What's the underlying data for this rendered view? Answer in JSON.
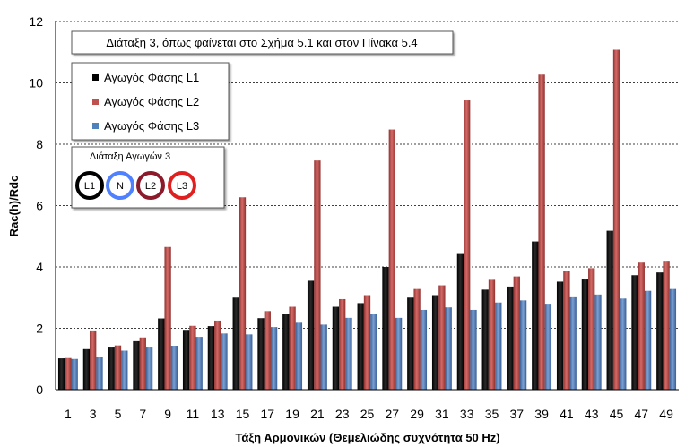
{
  "chart_data": {
    "type": "bar",
    "title": "",
    "annotation": "Διάταξη 3, όπως φαίνεται στο Σχήμα 5.1 και στον Πίνακα 5.4",
    "xlabel": "Τάξη Αρμονικών (Θεμελιώδης συχνότητα 50 Hz)",
    "ylabel": "Rac(h)/Rdc",
    "ylim": [
      0,
      12
    ],
    "yticks": [
      "0",
      "2",
      "4",
      "6",
      "8",
      "10",
      "12"
    ],
    "grid": "horizontal-dashed",
    "legend_position": "top-left",
    "categories": [
      "1",
      "3",
      "5",
      "7",
      "9",
      "11",
      "13",
      "15",
      "17",
      "19",
      "21",
      "23",
      "25",
      "27",
      "29",
      "31",
      "33",
      "35",
      "37",
      "39",
      "41",
      "43",
      "45",
      "47",
      "49"
    ],
    "series": [
      {
        "name": "Αγωγός Φάσης L1",
        "color": "#000000",
        "values": [
          1.02,
          1.32,
          1.4,
          1.58,
          2.32,
          1.95,
          2.07,
          3.0,
          2.33,
          2.46,
          3.55,
          2.7,
          2.82,
          4.0,
          3.0,
          3.08,
          4.45,
          3.26,
          3.36,
          4.83,
          3.52,
          3.59,
          5.18,
          3.73,
          3.82
        ]
      },
      {
        "name": "Αγωγός Φάσης L2",
        "color": "#c0504d",
        "values": [
          1.03,
          1.93,
          1.44,
          1.7,
          4.65,
          2.08,
          2.25,
          6.27,
          2.56,
          2.7,
          7.47,
          2.95,
          3.08,
          8.48,
          3.28,
          3.4,
          9.43,
          3.58,
          3.69,
          10.27,
          3.87,
          3.96,
          11.08,
          4.14,
          4.2
        ]
      },
      {
        "name": "Αγωγός Φάσης L3",
        "color": "#4f81bd",
        "values": [
          1.0,
          1.08,
          1.27,
          1.4,
          1.43,
          1.72,
          1.83,
          1.8,
          2.04,
          2.18,
          2.12,
          2.34,
          2.46,
          2.34,
          2.6,
          2.68,
          2.6,
          2.84,
          2.91,
          2.8,
          3.04,
          3.1,
          2.97,
          3.22,
          3.28
        ]
      }
    ],
    "inset": {
      "title": "Διάταξη Αγωγών 3",
      "conductors": [
        {
          "label": "L1",
          "color": "#000000"
        },
        {
          "label": "N",
          "color": "#4f81ff"
        },
        {
          "label": "L2",
          "color": "#8b1a2b"
        },
        {
          "label": "L3",
          "color": "#e02020"
        }
      ]
    }
  }
}
